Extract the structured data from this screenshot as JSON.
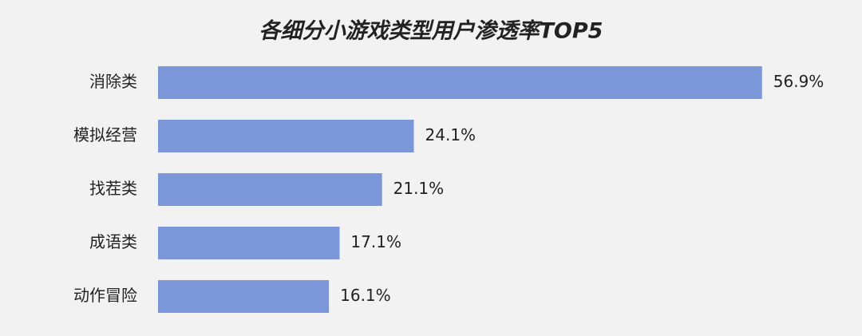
{
  "chart_data": {
    "type": "bar",
    "orientation": "horizontal",
    "title": "各细分小游戏类型用户渗透率TOP5",
    "categories": [
      "消除类",
      "模拟经营",
      "找茬类",
      "成语类",
      "动作冒险"
    ],
    "values": [
      56.9,
      24.1,
      21.1,
      17.1,
      16.1
    ],
    "value_labels": [
      "56.9%",
      "24.1%",
      "21.1%",
      "17.1%",
      "16.1%"
    ],
    "color": "#7b96d9"
  }
}
